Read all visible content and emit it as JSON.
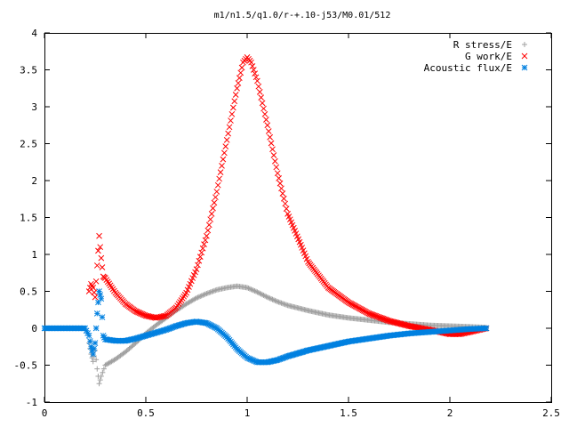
{
  "chart_data": {
    "type": "scatter",
    "title": "m1/n1.5/q1.0/r-+.10-j53/M0.01/512",
    "xlabel": "",
    "ylabel": "",
    "xlim": [
      0,
      2.5
    ],
    "ylim": [
      -1,
      4
    ],
    "xticks": [
      "0",
      "0.5",
      "1",
      "1.5",
      "2",
      "2.5"
    ],
    "yticks": [
      "-1",
      "-0.5",
      "0",
      "0.5",
      "1",
      "1.5",
      "2",
      "2.5",
      "3",
      "3.5",
      "4"
    ],
    "grid": false,
    "legend_position": "top-right",
    "series": [
      {
        "name": "R stress/E",
        "marker": "plus",
        "color": "#a0a0a0",
        "points": [
          [
            0.22,
            -0.2
          ],
          [
            0.23,
            -0.35
          ],
          [
            0.24,
            -0.45
          ],
          [
            0.25,
            -0.3
          ],
          [
            0.26,
            -0.55
          ],
          [
            0.27,
            -0.75
          ],
          [
            0.28,
            -0.65
          ],
          [
            0.3,
            -0.5
          ],
          [
            0.35,
            -0.42
          ],
          [
            0.4,
            -0.32
          ],
          [
            0.45,
            -0.2
          ],
          [
            0.5,
            -0.07
          ],
          [
            0.55,
            0.04
          ],
          [
            0.6,
            0.14
          ],
          [
            0.65,
            0.24
          ],
          [
            0.7,
            0.33
          ],
          [
            0.75,
            0.41
          ],
          [
            0.8,
            0.47
          ],
          [
            0.85,
            0.52
          ],
          [
            0.9,
            0.55
          ],
          [
            0.95,
            0.57
          ],
          [
            1.0,
            0.55
          ],
          [
            1.05,
            0.49
          ],
          [
            1.1,
            0.42
          ],
          [
            1.15,
            0.36
          ],
          [
            1.2,
            0.31
          ],
          [
            1.3,
            0.24
          ],
          [
            1.4,
            0.18
          ],
          [
            1.5,
            0.14
          ],
          [
            1.6,
            0.11
          ],
          [
            1.7,
            0.08
          ],
          [
            1.8,
            0.06
          ],
          [
            1.9,
            0.04
          ],
          [
            2.0,
            0.03
          ],
          [
            2.1,
            0.02
          ],
          [
            2.18,
            0.01
          ]
        ]
      },
      {
        "name": "G work/E",
        "marker": "cross",
        "color": "#ff0000",
        "points": [
          [
            0.22,
            0.5
          ],
          [
            0.23,
            0.6
          ],
          [
            0.24,
            0.55
          ],
          [
            0.25,
            0.42
          ],
          [
            0.26,
            0.85
          ],
          [
            0.27,
            1.25
          ],
          [
            0.28,
            0.95
          ],
          [
            0.29,
            0.7
          ],
          [
            0.3,
            0.68
          ],
          [
            0.35,
            0.48
          ],
          [
            0.4,
            0.33
          ],
          [
            0.45,
            0.23
          ],
          [
            0.5,
            0.17
          ],
          [
            0.55,
            0.14
          ],
          [
            0.6,
            0.17
          ],
          [
            0.65,
            0.28
          ],
          [
            0.7,
            0.48
          ],
          [
            0.75,
            0.8
          ],
          [
            0.8,
            1.25
          ],
          [
            0.85,
            1.85
          ],
          [
            0.9,
            2.55
          ],
          [
            0.95,
            3.25
          ],
          [
            0.98,
            3.6
          ],
          [
            1.0,
            3.67
          ],
          [
            1.02,
            3.6
          ],
          [
            1.05,
            3.35
          ],
          [
            1.1,
            2.75
          ],
          [
            1.15,
            2.1
          ],
          [
            1.2,
            1.55
          ],
          [
            1.3,
            0.9
          ],
          [
            1.4,
            0.55
          ],
          [
            1.5,
            0.35
          ],
          [
            1.6,
            0.2
          ],
          [
            1.7,
            0.1
          ],
          [
            1.8,
            0.03
          ],
          [
            1.9,
            -0.02
          ],
          [
            2.0,
            -0.08
          ],
          [
            2.05,
            -0.08
          ],
          [
            2.1,
            -0.05
          ],
          [
            2.18,
            0.0
          ]
        ]
      },
      {
        "name": "Acoustic flux/E",
        "marker": "star",
        "color": "#0080e0",
        "points": [
          [
            0.0,
            0.0
          ],
          [
            0.05,
            0.0
          ],
          [
            0.1,
            0.0
          ],
          [
            0.15,
            0.0
          ],
          [
            0.2,
            0.0
          ],
          [
            0.22,
            -0.1
          ],
          [
            0.23,
            -0.25
          ],
          [
            0.24,
            -0.35
          ],
          [
            0.25,
            -0.2
          ],
          [
            0.26,
            0.2
          ],
          [
            0.27,
            0.5
          ],
          [
            0.28,
            0.4
          ],
          [
            0.29,
            -0.1
          ],
          [
            0.3,
            -0.15
          ],
          [
            0.35,
            -0.17
          ],
          [
            0.4,
            -0.17
          ],
          [
            0.45,
            -0.14
          ],
          [
            0.5,
            -0.1
          ],
          [
            0.55,
            -0.06
          ],
          [
            0.6,
            -0.02
          ],
          [
            0.65,
            0.03
          ],
          [
            0.7,
            0.07
          ],
          [
            0.75,
            0.09
          ],
          [
            0.8,
            0.07
          ],
          [
            0.85,
            0.0
          ],
          [
            0.9,
            -0.12
          ],
          [
            0.95,
            -0.28
          ],
          [
            1.0,
            -0.4
          ],
          [
            1.05,
            -0.46
          ],
          [
            1.1,
            -0.46
          ],
          [
            1.15,
            -0.43
          ],
          [
            1.2,
            -0.38
          ],
          [
            1.3,
            -0.3
          ],
          [
            1.4,
            -0.24
          ],
          [
            1.5,
            -0.18
          ],
          [
            1.6,
            -0.14
          ],
          [
            1.7,
            -0.1
          ],
          [
            1.8,
            -0.07
          ],
          [
            1.9,
            -0.05
          ],
          [
            2.0,
            -0.03
          ],
          [
            2.1,
            -0.01
          ],
          [
            2.18,
            0.0
          ]
        ]
      }
    ]
  }
}
